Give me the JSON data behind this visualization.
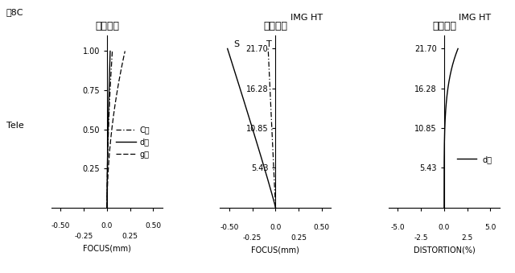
{
  "fig_label": "図8C",
  "tele_label": "Tele",
  "titles": [
    "球面収差",
    "非点収差",
    "歪曲収差"
  ],
  "sa_yticks": [
    0.25,
    0.5,
    0.75,
    1.0
  ],
  "sa_ylim": [
    0.0,
    1.1
  ],
  "sa_xlim": [
    -0.6,
    0.6
  ],
  "sa_xlabel": "FOCUS(mm)",
  "ast_yticks": [
    5.43,
    10.85,
    16.28,
    21.7
  ],
  "ast_ylim": [
    0.0,
    23.5
  ],
  "ast_xlim": [
    -0.6,
    0.6
  ],
  "ast_xlabel": "FOCUS(mm)",
  "ast_img_ht_label": "IMG HT",
  "dist_yticks": [
    5.43,
    10.85,
    16.28,
    21.7
  ],
  "dist_ylim": [
    0.0,
    23.5
  ],
  "dist_xlim": [
    -6.0,
    6.0
  ],
  "dist_xlabel": "DISTORTION(%)",
  "dist_img_ht_label": "IMG HT",
  "line_color": "#000000",
  "background": "#ffffff",
  "c_line_label": "C線",
  "d_line_label": "d線",
  "g_line_label": "g線",
  "s_label": "S",
  "t_label": "T"
}
